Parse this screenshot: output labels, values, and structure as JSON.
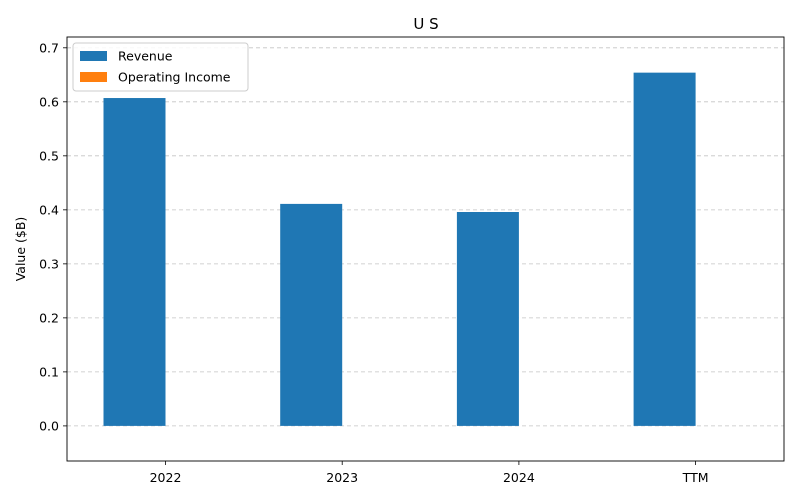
{
  "chart_data": {
    "type": "bar",
    "title": "U S",
    "xlabel": "",
    "ylabel": "Value ($B)",
    "categories": [
      "2022",
      "2023",
      "2024",
      "TTM"
    ],
    "series": [
      {
        "name": "Revenue",
        "color": "#1f77b4",
        "values": [
          0.607,
          0.411,
          0.396,
          0.654
        ]
      },
      {
        "name": "Operating Income",
        "color": "#ff7f0e",
        "values": [
          0,
          0,
          0,
          0
        ]
      }
    ],
    "ylim": [
      -0.065,
      0.72
    ],
    "yticks": [
      0.0,
      0.1,
      0.2,
      0.3,
      0.4,
      0.5,
      0.6,
      0.7
    ],
    "ytick_labels": [
      "0.0",
      "0.1",
      "0.2",
      "0.3",
      "0.4",
      "0.5",
      "0.6",
      "0.7"
    ],
    "grid": true,
    "legend_position": "top-left"
  }
}
